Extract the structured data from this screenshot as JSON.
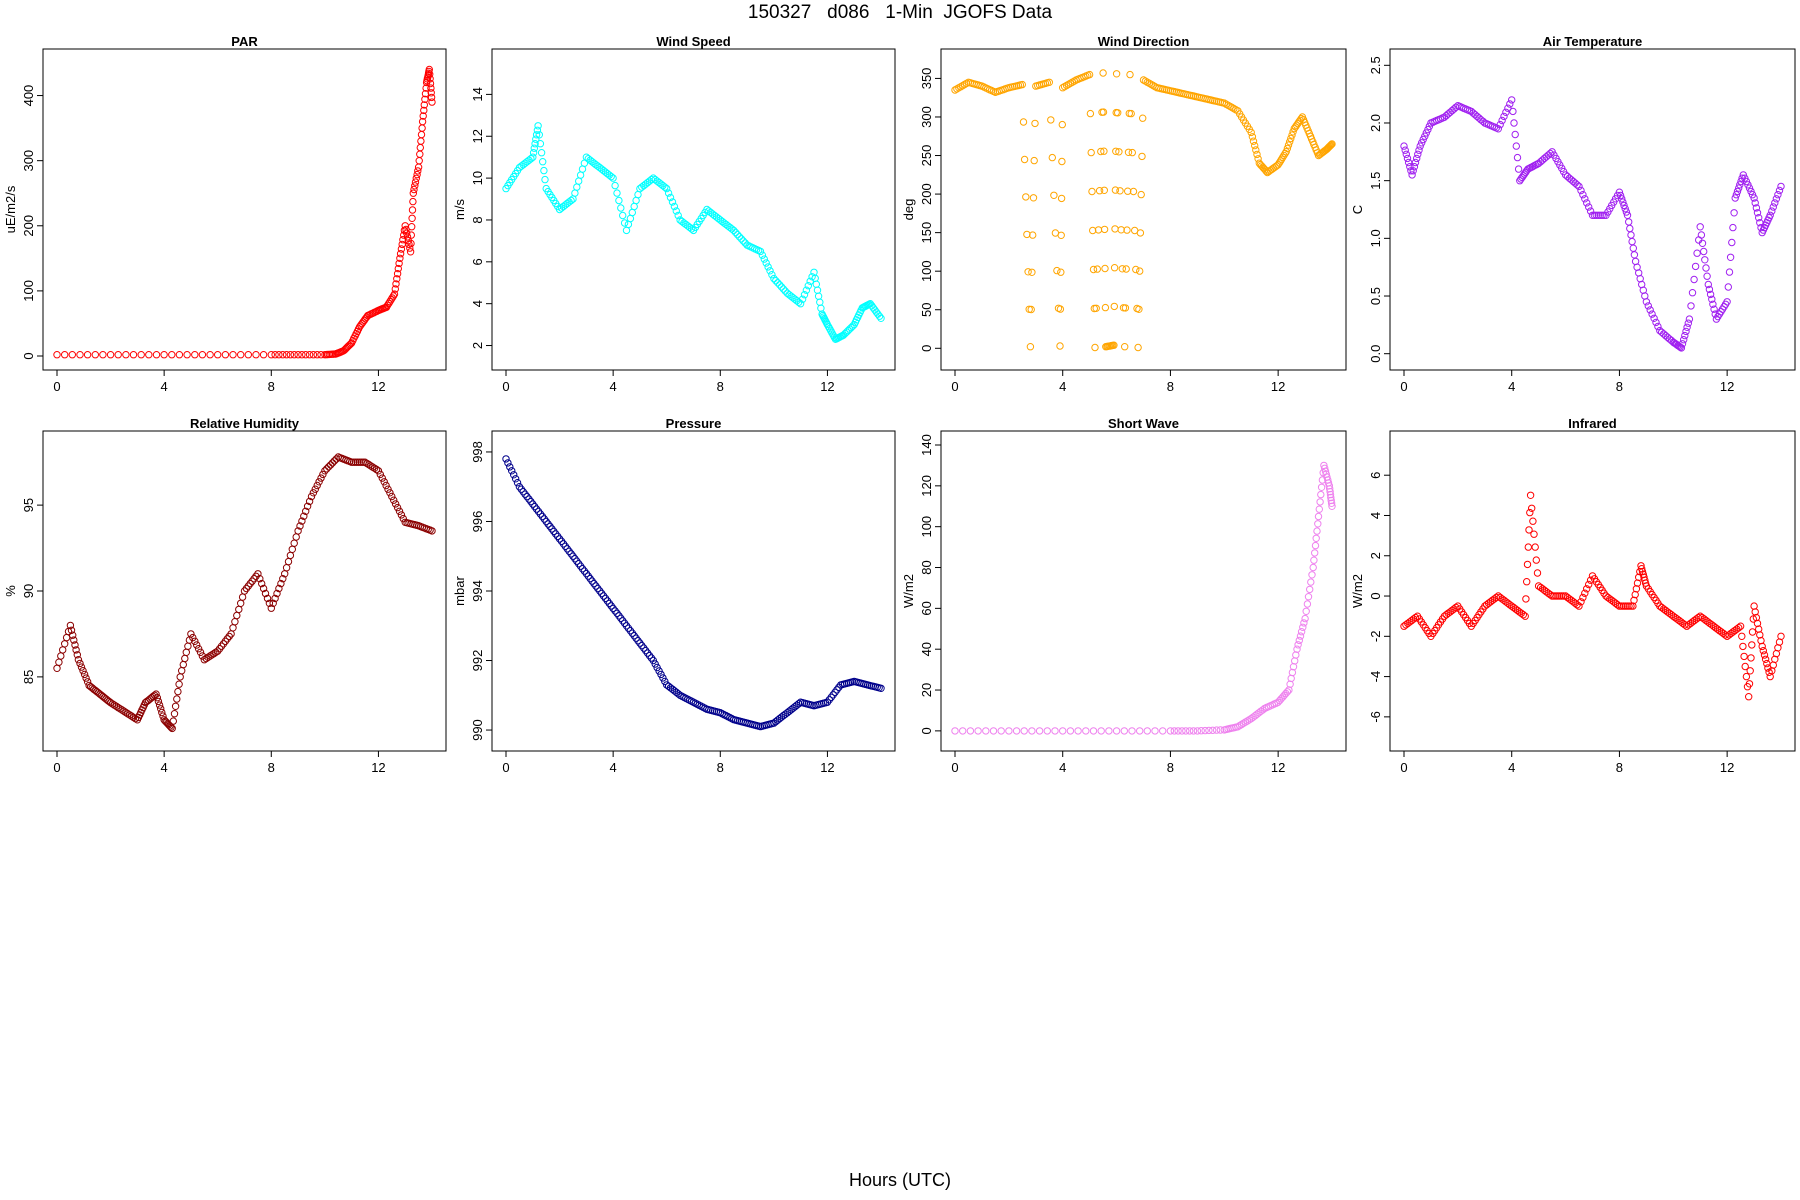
{
  "figure": {
    "title": "150327   d086   1-Min  JGOFS Data",
    "xlabel": "Hours (UTC)"
  },
  "chart_data": [
    {
      "type": "scatter",
      "title": "PAR",
      "ylabel": "uE/m2/s",
      "color": "#ff0000",
      "xlim": [
        0,
        14
      ],
      "ylim": [
        0,
        450
      ],
      "xticks": [
        "0",
        "4",
        "8",
        "12"
      ],
      "yticks": [
        "0",
        "100",
        "200",
        "300",
        "400"
      ],
      "points": [
        [
          0,
          2
        ],
        [
          2,
          2
        ],
        [
          4,
          2
        ],
        [
          6,
          2
        ],
        [
          8,
          2
        ],
        [
          9,
          2
        ],
        [
          10,
          2
        ],
        [
          10.4,
          3
        ],
        [
          10.7,
          8
        ],
        [
          11,
          20
        ],
        [
          11.3,
          45
        ],
        [
          11.6,
          62
        ],
        [
          12,
          70
        ],
        [
          12.3,
          75
        ],
        [
          12.6,
          95
        ],
        [
          12.8,
          150
        ],
        [
          13,
          200
        ],
        [
          13.2,
          160
        ],
        [
          13.3,
          250
        ],
        [
          13.5,
          290
        ],
        [
          13.65,
          360
        ],
        [
          13.8,
          420
        ],
        [
          13.9,
          440
        ],
        [
          14,
          390
        ]
      ]
    },
    {
      "type": "scatter",
      "title": "Wind Speed",
      "ylabel": "m/s",
      "color": "#00ffff",
      "xlim": [
        0,
        14
      ],
      "ylim": [
        1.5,
        15.5
      ],
      "xticks": [
        "0",
        "4",
        "8",
        "12"
      ],
      "yticks": [
        "2",
        "4",
        "6",
        "8",
        "10",
        "12",
        "14"
      ],
      "points": [
        [
          0,
          9.5
        ],
        [
          0.5,
          10.5
        ],
        [
          1,
          11
        ],
        [
          1.2,
          12.5
        ],
        [
          1.5,
          9.5
        ],
        [
          2,
          8.5
        ],
        [
          2.5,
          9
        ],
        [
          3,
          11
        ],
        [
          3.5,
          10.5
        ],
        [
          4,
          10
        ],
        [
          4.5,
          7.5
        ],
        [
          5,
          9.5
        ],
        [
          5.5,
          10
        ],
        [
          6,
          9.5
        ],
        [
          6.5,
          8
        ],
        [
          7,
          7.5
        ],
        [
          7.5,
          8.5
        ],
        [
          8,
          8
        ],
        [
          8.5,
          7.5
        ],
        [
          9,
          6.8
        ],
        [
          9.5,
          6.5
        ],
        [
          10,
          5.2
        ],
        [
          10.5,
          4.5
        ],
        [
          11,
          4
        ],
        [
          11.5,
          5.5
        ],
        [
          11.8,
          3.5
        ],
        [
          12,
          3
        ],
        [
          12.3,
          2.3
        ],
        [
          12.6,
          2.5
        ],
        [
          13,
          3
        ],
        [
          13.3,
          3.8
        ],
        [
          13.6,
          4
        ],
        [
          14,
          3.3
        ]
      ]
    },
    {
      "type": "scatter",
      "title": "Wind Direction",
      "ylabel": "deg",
      "color": "#ffa500",
      "xlim": [
        0,
        14
      ],
      "ylim": [
        -10,
        370
      ],
      "xticks": [
        "0",
        "4",
        "8",
        "12"
      ],
      "yticks": [
        "0",
        "50",
        "100",
        "150",
        "200",
        "250",
        "300",
        "350"
      ],
      "points": [
        [
          0,
          335
        ],
        [
          0.5,
          345
        ],
        [
          1,
          340
        ],
        [
          1.5,
          332
        ],
        [
          2,
          338
        ],
        [
          2.5,
          342
        ],
        [
          3,
          340
        ],
        [
          3.5,
          345
        ],
        [
          4,
          338
        ],
        [
          4.5,
          348
        ],
        [
          5,
          355
        ],
        [
          5.5,
          357
        ],
        [
          6,
          356
        ],
        [
          6.5,
          355
        ],
        [
          7,
          348
        ],
        [
          7.5,
          338
        ],
        [
          8,
          334
        ],
        [
          8.5,
          330
        ],
        [
          9,
          326
        ],
        [
          9.5,
          322
        ],
        [
          10,
          318
        ],
        [
          10.5,
          308
        ],
        [
          11,
          280
        ],
        [
          11.3,
          240
        ],
        [
          11.6,
          228
        ],
        [
          12,
          238
        ],
        [
          12.3,
          255
        ],
        [
          12.6,
          285
        ],
        [
          12.9,
          300
        ],
        [
          13.2,
          275
        ],
        [
          13.5,
          250
        ],
        [
          13.8,
          258
        ],
        [
          14,
          265
        ],
        [
          2.8,
          2
        ],
        [
          3.9,
          3
        ],
        [
          5.2,
          1
        ],
        [
          5.6,
          2
        ],
        [
          5.9,
          4
        ],
        [
          6.3,
          2
        ],
        [
          6.8,
          1
        ]
      ]
    },
    {
      "type": "scatter",
      "title": "Air Temperature",
      "ylabel": "C",
      "color": "#a020f0",
      "xlim": [
        0,
        14
      ],
      "ylim": [
        -0.02,
        2.52
      ],
      "xticks": [
        "0",
        "4",
        "8",
        "12"
      ],
      "yticks": [
        "0.0",
        "0.5",
        "1.0",
        "1.5",
        "2.0",
        "2.5"
      ],
      "points": [
        [
          0,
          1.8
        ],
        [
          0.3,
          1.55
        ],
        [
          0.6,
          1.8
        ],
        [
          1,
          2.0
        ],
        [
          1.5,
          2.05
        ],
        [
          2,
          2.15
        ],
        [
          2.5,
          2.1
        ],
        [
          3,
          2.0
        ],
        [
          3.5,
          1.95
        ],
        [
          4,
          2.2
        ],
        [
          4.3,
          1.5
        ],
        [
          4.6,
          1.6
        ],
        [
          5,
          1.65
        ],
        [
          5.5,
          1.75
        ],
        [
          6,
          1.55
        ],
        [
          6.5,
          1.45
        ],
        [
          7,
          1.2
        ],
        [
          7.5,
          1.2
        ],
        [
          8,
          1.4
        ],
        [
          8.3,
          1.2
        ],
        [
          8.6,
          0.8
        ],
        [
          9,
          0.45
        ],
        [
          9.5,
          0.2
        ],
        [
          10,
          0.1
        ],
        [
          10.3,
          0.05
        ],
        [
          10.6,
          0.3
        ],
        [
          11,
          1.1
        ],
        [
          11.3,
          0.6
        ],
        [
          11.6,
          0.3
        ],
        [
          12,
          0.45
        ],
        [
          12.3,
          1.35
        ],
        [
          12.6,
          1.55
        ],
        [
          13,
          1.35
        ],
        [
          13.3,
          1.05
        ],
        [
          13.6,
          1.2
        ],
        [
          14,
          1.45
        ]
      ]
    },
    {
      "type": "scatter",
      "title": "Relative Humidity",
      "ylabel": "%",
      "color": "#8b0000",
      "xlim": [
        0,
        14
      ],
      "ylim": [
        81.5,
        98.5
      ],
      "xticks": [
        "0",
        "4",
        "8",
        "12"
      ],
      "yticks": [
        "85",
        "90",
        "95"
      ],
      "points": [
        [
          0,
          85.5
        ],
        [
          0.5,
          88
        ],
        [
          0.8,
          86
        ],
        [
          1.2,
          84.5
        ],
        [
          1.6,
          84
        ],
        [
          2,
          83.5
        ],
        [
          2.5,
          83
        ],
        [
          3,
          82.5
        ],
        [
          3.3,
          83.5
        ],
        [
          3.7,
          84
        ],
        [
          4,
          82.5
        ],
        [
          4.3,
          82
        ],
        [
          4.6,
          85
        ],
        [
          5,
          87.5
        ],
        [
          5.5,
          86
        ],
        [
          6,
          86.5
        ],
        [
          6.5,
          87.5
        ],
        [
          7,
          90
        ],
        [
          7.5,
          91
        ],
        [
          8,
          89
        ],
        [
          8.5,
          91
        ],
        [
          9,
          93.5
        ],
        [
          9.5,
          95.5
        ],
        [
          10,
          97
        ],
        [
          10.5,
          97.8
        ],
        [
          11,
          97.5
        ],
        [
          11.5,
          97.5
        ],
        [
          12,
          97
        ],
        [
          12.5,
          95.5
        ],
        [
          13,
          94
        ],
        [
          13.5,
          93.8
        ],
        [
          14,
          93.5
        ]
      ]
    },
    {
      "type": "scatter",
      "title": "Pressure",
      "ylabel": "mbar",
      "color": "#00008b",
      "xlim": [
        0,
        14
      ],
      "ylim": [
        989.8,
        998.2
      ],
      "xticks": [
        "0",
        "4",
        "8",
        "12"
      ],
      "yticks": [
        "990",
        "992",
        "994",
        "996",
        "998"
      ],
      "points": [
        [
          0,
          997.8
        ],
        [
          0.5,
          997
        ],
        [
          1,
          996.5
        ],
        [
          1.5,
          996
        ],
        [
          2,
          995.5
        ],
        [
          2.5,
          995
        ],
        [
          3,
          994.5
        ],
        [
          3.5,
          994
        ],
        [
          4,
          993.5
        ],
        [
          4.5,
          993
        ],
        [
          5,
          992.5
        ],
        [
          5.5,
          992
        ],
        [
          6,
          991.3
        ],
        [
          6.5,
          991
        ],
        [
          7,
          990.8
        ],
        [
          7.5,
          990.6
        ],
        [
          8,
          990.5
        ],
        [
          8.5,
          990.3
        ],
        [
          9,
          990.2
        ],
        [
          9.5,
          990.1
        ],
        [
          10,
          990.2
        ],
        [
          10.5,
          990.5
        ],
        [
          11,
          990.8
        ],
        [
          11.5,
          990.7
        ],
        [
          12,
          990.8
        ],
        [
          12.5,
          991.3
        ],
        [
          13,
          991.4
        ],
        [
          13.5,
          991.3
        ],
        [
          14,
          991.2
        ]
      ]
    },
    {
      "type": "scatter",
      "title": "Short Wave",
      "ylabel": "W/m2",
      "color": "#ee82ee",
      "xlim": [
        0,
        14
      ],
      "ylim": [
        -3,
        140
      ],
      "xticks": [
        "0",
        "4",
        "8",
        "12"
      ],
      "yticks": [
        "0",
        "20",
        "40",
        "60",
        "80",
        "100",
        "120",
        "140"
      ],
      "points": [
        [
          0,
          0
        ],
        [
          2,
          0
        ],
        [
          4,
          0
        ],
        [
          6,
          0
        ],
        [
          8,
          0
        ],
        [
          9,
          0
        ],
        [
          10,
          0.5
        ],
        [
          10.5,
          2
        ],
        [
          11,
          6
        ],
        [
          11.5,
          11
        ],
        [
          12,
          14
        ],
        [
          12.4,
          20
        ],
        [
          12.7,
          40
        ],
        [
          13,
          55
        ],
        [
          13.3,
          80
        ],
        [
          13.5,
          105
        ],
        [
          13.7,
          130
        ],
        [
          13.9,
          120
        ],
        [
          14,
          110
        ]
      ]
    },
    {
      "type": "scatter",
      "title": "Infrared",
      "ylabel": "W/m2",
      "color": "#ff0000",
      "xlim": [
        0,
        14
      ],
      "ylim": [
        -7,
        7.5
      ],
      "xticks": [
        "0",
        "4",
        "8",
        "12"
      ],
      "yticks": [
        "-6",
        "-4",
        "-2",
        "0",
        "2",
        "4",
        "6"
      ],
      "points": [
        [
          0,
          -1.5
        ],
        [
          0.5,
          -1
        ],
        [
          1,
          -2
        ],
        [
          1.5,
          -1
        ],
        [
          2,
          -0.5
        ],
        [
          2.5,
          -1.5
        ],
        [
          3,
          -0.5
        ],
        [
          3.5,
          0
        ],
        [
          4,
          -0.5
        ],
        [
          4.5,
          -1
        ],
        [
          4.7,
          5
        ],
        [
          5,
          0.5
        ],
        [
          5.5,
          0
        ],
        [
          6,
          0
        ],
        [
          6.5,
          -0.5
        ],
        [
          7,
          1
        ],
        [
          7.5,
          0
        ],
        [
          8,
          -0.5
        ],
        [
          8.5,
          -0.5
        ],
        [
          8.8,
          1.5
        ],
        [
          9,
          0.5
        ],
        [
          9.5,
          -0.5
        ],
        [
          10,
          -1
        ],
        [
          10.5,
          -1.5
        ],
        [
          11,
          -1
        ],
        [
          11.5,
          -1.5
        ],
        [
          12,
          -2
        ],
        [
          12.5,
          -1.5
        ],
        [
          12.8,
          -5
        ],
        [
          13,
          -0.5
        ],
        [
          13.3,
          -2.5
        ],
        [
          13.6,
          -4
        ],
        [
          14,
          -2
        ]
      ]
    }
  ]
}
